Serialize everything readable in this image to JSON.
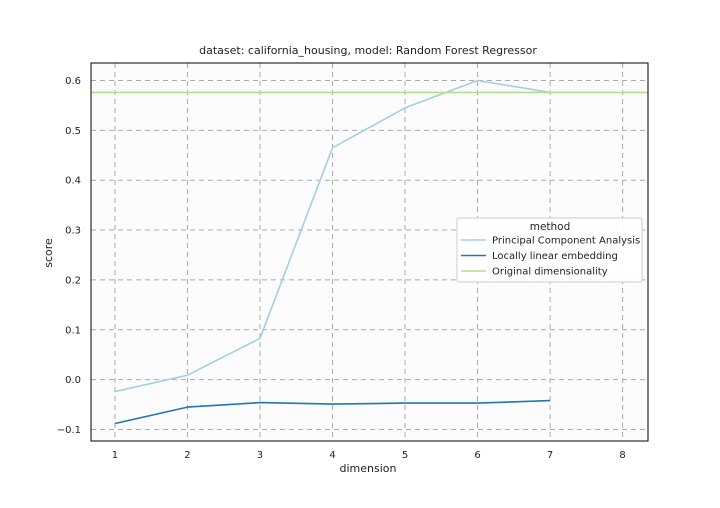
{
  "chart_data": {
    "type": "line",
    "title": "dataset: california_housing, model: Random Forest Regressor",
    "xlabel": "dimension",
    "ylabel": "score",
    "xlim": [
      0.67,
      8.35
    ],
    "ylim": [
      -0.123,
      0.635
    ],
    "xticks": [
      1,
      2,
      3,
      4,
      5,
      6,
      7,
      8
    ],
    "yticks": [
      -0.1,
      0.0,
      0.1,
      0.2,
      0.3,
      0.4,
      0.5,
      0.6
    ],
    "ytick_labels": [
      "−0.1",
      "0.0",
      "0.1",
      "0.2",
      "0.3",
      "0.4",
      "0.5",
      "0.6"
    ],
    "grid": true,
    "legend": {
      "title": "method",
      "position": "center-right"
    },
    "series": [
      {
        "name": "Principal Component Analysis",
        "color": "#a6cee3",
        "x": [
          1,
          2,
          3,
          4,
          5,
          6,
          7
        ],
        "y": [
          -0.024,
          0.009,
          0.083,
          0.465,
          0.545,
          0.6,
          0.576
        ]
      },
      {
        "name": "Locally linear embedding",
        "color": "#1f78b4",
        "x": [
          1,
          2,
          3,
          4,
          5,
          6,
          7
        ],
        "y": [
          -0.088,
          -0.055,
          -0.046,
          -0.049,
          -0.047,
          -0.047,
          -0.042
        ]
      },
      {
        "name": "Original dimensionality",
        "color": "#b2df8a",
        "kind": "hline",
        "y": 0.576
      }
    ]
  }
}
